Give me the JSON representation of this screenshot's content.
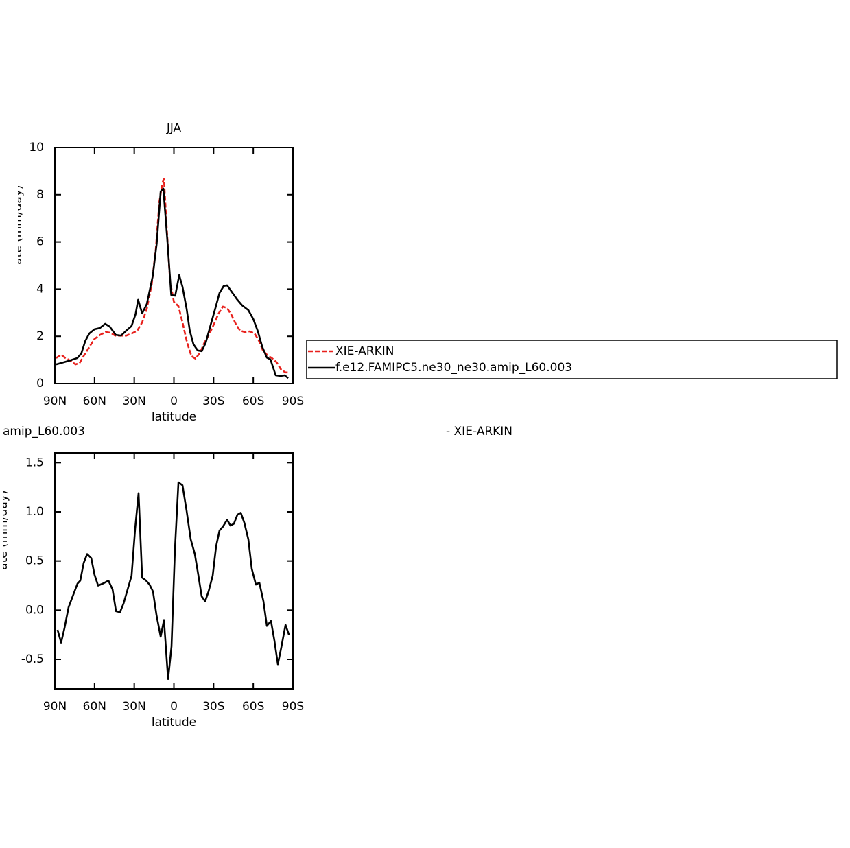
{
  "chart_data": [
    {
      "type": "line",
      "title": "JJA",
      "x_label": "latitude",
      "y_label": "Precipitation rate (mm/day)",
      "xlim": [
        90,
        -90
      ],
      "ylim": [
        0,
        10
      ],
      "xticks": [
        {
          "value": 90,
          "label": "90N"
        },
        {
          "value": 60,
          "label": "60N"
        },
        {
          "value": 30,
          "label": "30N"
        },
        0,
        {
          "value": -30,
          "label": "30S"
        },
        {
          "value": -60,
          "label": "60S"
        },
        {
          "value": -90,
          "label": "90S"
        }
      ],
      "yticks": [
        0,
        2,
        4,
        6,
        8,
        10
      ],
      "legend": "outside-right",
      "series": [
        {
          "name": "XIE-ARKIN",
          "color": "#e8201c",
          "dash": true,
          "x": [
            89,
            85.3,
            82,
            78,
            74.4,
            71.3,
            68,
            64,
            60,
            55.8,
            51.6,
            48,
            44.4,
            40,
            36,
            31.9,
            27.7,
            24,
            20.5,
            16.8,
            13.7,
            11,
            8.6,
            7.5,
            5.5,
            2.9,
            0,
            -3.4,
            -6.5,
            -10,
            -13.3,
            -16.4,
            -20,
            -23,
            -26.7,
            -30.4,
            -33.5,
            -37,
            -40.2,
            -43.8,
            -47,
            -50,
            -53.7,
            -57.3,
            -61,
            -64.1,
            -67.2,
            -70.8,
            -74,
            -77.6,
            -81.2,
            -84.4,
            -87.4
          ],
          "values": [
            1.08,
            1.22,
            1.08,
            0.96,
            0.81,
            0.87,
            1.19,
            1.54,
            1.89,
            2.06,
            2.18,
            2.15,
            2.03,
            2.03,
            2.03,
            2.12,
            2.24,
            2.59,
            3.17,
            4.19,
            5.7,
            7.7,
            8.52,
            8.66,
            6.66,
            4.33,
            3.46,
            3.28,
            2.59,
            1.72,
            1.16,
            1.05,
            1.34,
            1.72,
            2.09,
            2.53,
            2.94,
            3.26,
            3.2,
            2.88,
            2.5,
            2.24,
            2.18,
            2.21,
            2.12,
            1.83,
            1.42,
            1.19,
            1.08,
            0.9,
            0.58,
            0.47,
            0.47
          ]
        },
        {
          "name": "f.e12.FAMIPC5.ne30_ne30.amip_L60.003",
          "color": "#000000",
          "x": [
            89,
            79.6,
            73,
            70,
            67,
            64,
            60,
            56,
            52,
            48.5,
            44,
            40,
            36,
            32,
            29,
            27,
            24,
            20.5,
            16,
            13,
            10,
            8,
            5,
            2,
            -1,
            -4,
            -6.5,
            -9.6,
            -12,
            -14.8,
            -18,
            -21,
            -24,
            -27.7,
            -31.4,
            -34.5,
            -37.6,
            -40.2,
            -43.3,
            -47.5,
            -51.6,
            -56.3,
            -60,
            -63.5,
            -66.7,
            -70.3,
            -73,
            -77,
            -80.7,
            -83.8,
            -86.4
          ],
          "values": [
            0.81,
            0.96,
            1.08,
            1.28,
            1.8,
            2.12,
            2.3,
            2.35,
            2.53,
            2.41,
            2.06,
            2.03,
            2.24,
            2.44,
            2.94,
            3.55,
            2.97,
            3.37,
            4.56,
            5.93,
            8.14,
            8.26,
            6.08,
            3.75,
            3.72,
            4.59,
            4.1,
            3.17,
            2.24,
            1.66,
            1.4,
            1.37,
            1.72,
            2.47,
            3.2,
            3.84,
            4.13,
            4.16,
            3.92,
            3.58,
            3.31,
            3.11,
            2.73,
            2.21,
            1.57,
            1.1,
            1.02,
            0.35,
            0.32,
            0.35,
            0.23
          ]
        }
      ]
    },
    {
      "type": "line",
      "left_title": "amip_L60.003",
      "right_title": "- XIE-ARKIN",
      "x_label": "latitude",
      "y_label": "Precipitation rate (mm/day)",
      "xlim": [
        90,
        -90
      ],
      "ylim": [
        -0.8,
        1.6
      ],
      "xticks": [
        {
          "value": 90,
          "label": "90N"
        },
        {
          "value": 60,
          "label": "60N"
        },
        {
          "value": 30,
          "label": "30N"
        },
        0,
        {
          "value": -30,
          "label": "30S"
        },
        {
          "value": -60,
          "label": "60S"
        },
        {
          "value": -90,
          "label": "90S"
        }
      ],
      "yticks": [
        -0.5,
        {
          "value": 0,
          "label": "0.0"
        },
        0.5,
        {
          "value": 1,
          "label": "1.0"
        },
        1.5
      ],
      "series": [
        {
          "color": "#000000",
          "x": [
            88,
            85.3,
            82.7,
            79.6,
            76,
            72.9,
            70.8,
            68.2,
            65.6,
            62.5,
            60,
            57.3,
            53.7,
            49.5,
            46.4,
            43.8,
            40.7,
            38,
            35,
            32,
            29.3,
            26.7,
            24,
            21,
            18.4,
            15.8,
            13.2,
            10,
            7.5,
            4.4,
            1.8,
            -0.8,
            -3.4,
            -6.5,
            -9.6,
            -12.7,
            -15.8,
            -18.4,
            -21,
            -23.6,
            -26.2,
            -29.3,
            -31.9,
            -34.5,
            -37.1,
            -40.2,
            -42.8,
            -45.4,
            -48,
            -50.6,
            -53.2,
            -56.3,
            -58.9,
            -62,
            -64.6,
            -67.7,
            -70.3,
            -73.4,
            -76,
            -78.6,
            -81.2,
            -84.4,
            -87
          ],
          "values": [
            -0.2,
            -0.33,
            -0.18,
            0.03,
            0.16,
            0.27,
            0.3,
            0.48,
            0.57,
            0.53,
            0.36,
            0.25,
            0.27,
            0.3,
            0.21,
            -0.01,
            -0.02,
            0.07,
            0.21,
            0.35,
            0.83,
            1.19,
            0.33,
            0.3,
            0.26,
            0.19,
            -0.05,
            -0.27,
            -0.1,
            -0.7,
            -0.37,
            0.62,
            1.3,
            1.27,
            1.01,
            0.72,
            0.57,
            0.36,
            0.14,
            0.09,
            0.19,
            0.35,
            0.65,
            0.81,
            0.85,
            0.92,
            0.86,
            0.88,
            0.97,
            0.99,
            0.89,
            0.72,
            0.42,
            0.26,
            0.28,
            0.09,
            -0.16,
            -0.11,
            -0.31,
            -0.55,
            -0.38,
            -0.15,
            -0.25
          ]
        }
      ]
    }
  ]
}
